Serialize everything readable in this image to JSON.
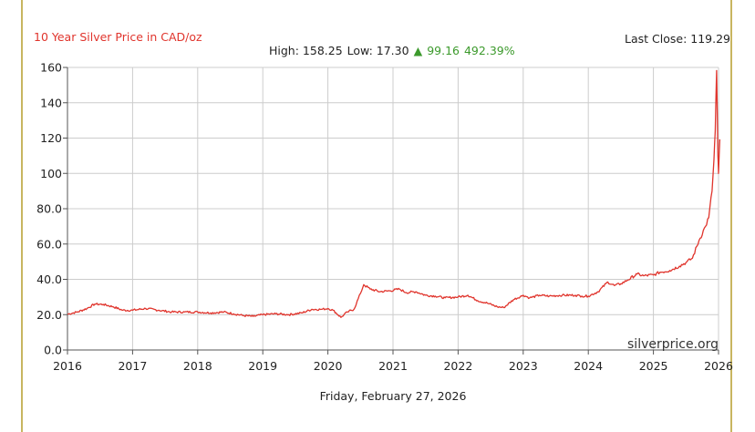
{
  "chart_data": {
    "type": "line",
    "title": "10 Year Silver Price in CAD/oz",
    "stats": {
      "high_label": "High: 158.25",
      "low_label": "Low: 17.30",
      "change_arrow": "▲",
      "change_value": "99.16",
      "change_pct": "492.39%",
      "last_close_label": "Last Close: 119.29"
    },
    "date_label": "Friday, February 27, 2026",
    "watermark": "silverprice.org",
    "xlim": [
      2016,
      2026
    ],
    "ylim": [
      0,
      160
    ],
    "x_ticks": [
      "2016",
      "2017",
      "2018",
      "2019",
      "2020",
      "2021",
      "2022",
      "2023",
      "2024",
      "2025",
      "2026"
    ],
    "y_ticks": [
      "0.0",
      "20.0",
      "40.0",
      "60.0",
      "80.0",
      "100",
      "120",
      "140",
      "160"
    ],
    "grid": true,
    "colors": {
      "line": "#e0342c",
      "up": "#3c9a2c",
      "grid": "#cccccc",
      "frame": "#c8b560"
    },
    "series": [
      {
        "x": [
          2016.0,
          2016.15,
          2016.3,
          2016.42,
          2016.55,
          2016.7,
          2016.85,
          2017.0,
          2017.2,
          2017.4,
          2017.6,
          2017.8,
          2018.0,
          2018.2,
          2018.4,
          2018.55,
          2018.7,
          2018.85,
          2019.0,
          2019.2,
          2019.4,
          2019.6,
          2019.75,
          2019.9,
          2020.0,
          2020.08,
          2020.2,
          2020.3,
          2020.4,
          2020.5,
          2020.55,
          2020.65,
          2020.8,
          2020.95,
          2021.1,
          2021.2,
          2021.35,
          2021.5,
          2021.65,
          2021.8,
          2022.0,
          2022.15,
          2022.3,
          2022.45,
          2022.6,
          2022.7,
          2022.85,
          2023.0,
          2023.1,
          2023.25,
          2023.4,
          2023.6,
          2023.8,
          2023.9,
          2024.0,
          2024.15,
          2024.3,
          2024.4,
          2024.5,
          2024.6,
          2024.75,
          2024.85,
          2025.0,
          2025.1,
          2025.25,
          2025.4,
          2025.5,
          2025.6,
          2025.7,
          2025.8,
          2025.85,
          2025.9,
          2025.93,
          2025.95,
          2025.97,
          2025.99,
          2026.0,
          2026.02
        ],
        "y": [
          20.3,
          21.5,
          23.5,
          26.0,
          25.8,
          24.5,
          22.5,
          22.5,
          23.5,
          22.5,
          21.5,
          21.5,
          21.5,
          21.0,
          21.5,
          20.5,
          19.5,
          19.0,
          20.0,
          20.5,
          20.0,
          21.0,
          23.0,
          23.0,
          23.5,
          22.5,
          18.5,
          21.5,
          23.0,
          32.0,
          37.0,
          34.5,
          33.0,
          33.5,
          34.5,
          32.5,
          33.0,
          31.0,
          30.5,
          29.5,
          30.0,
          31.0,
          28.0,
          26.5,
          24.5,
          24.0,
          28.5,
          31.0,
          29.5,
          31.0,
          30.5,
          31.0,
          31.0,
          30.5,
          30.5,
          33.0,
          38.5,
          36.5,
          37.5,
          39.5,
          43.0,
          42.0,
          42.5,
          44.0,
          45.0,
          47.5,
          49.5,
          52.0,
          62.0,
          70.0,
          75.0,
          90.0,
          108.0,
          124.0,
          158.25,
          110.0,
          100.0,
          119.29
        ]
      }
    ]
  }
}
